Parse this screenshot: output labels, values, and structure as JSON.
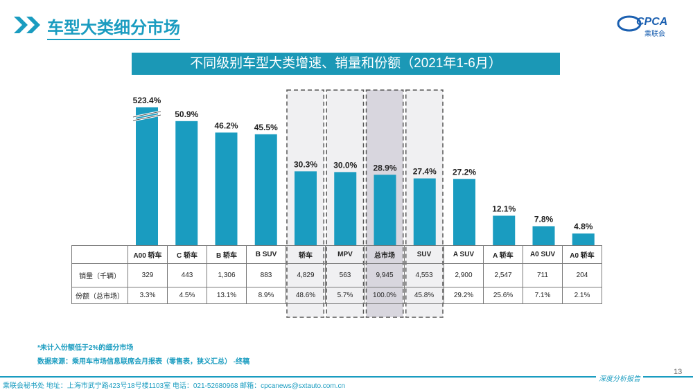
{
  "header": {
    "title": "车型大类细分市场",
    "logo_text": "CPCA 乘联会"
  },
  "banner": {
    "title": "不同级别车型大类增速、销量和份额（2021年1-6月）"
  },
  "chart_data": {
    "type": "bar",
    "title": "不同级别车型大类增速、销量和份额（2021年1-6月）",
    "categories": [
      "A00 轿车",
      "C 轿车",
      "B 轿车",
      "B SUV",
      "轿车",
      "MPV",
      "总市场",
      "SUV",
      "A SUV",
      "A 轿车",
      "A0 SUV",
      "A0 轿车"
    ],
    "values": [
      523.4,
      50.9,
      46.2,
      45.5,
      30.3,
      30.0,
      28.9,
      27.4,
      27.2,
      12.1,
      7.8,
      4.8
    ],
    "labels": [
      "523.4%",
      "50.9%",
      "46.2%",
      "45.5%",
      "30.3%",
      "30.0%",
      "28.9%",
      "27.4%",
      "27.2%",
      "12.1%",
      "7.8%",
      "4.8%"
    ],
    "broken_axis_category": "A00 轿车",
    "highlighted_categories": [
      "轿车",
      "MPV",
      "总市场",
      "SUV"
    ],
    "bar_color": "#1a9cc0",
    "grid": false
  },
  "table": {
    "rows": [
      {
        "label": "销量（千辆）",
        "values": [
          "329",
          "443",
          "1,306",
          "883",
          "4,829",
          "563",
          "9,945",
          "4,553",
          "2,900",
          "2,547",
          "711",
          "204"
        ]
      },
      {
        "label": "份额（总市场）",
        "values": [
          "3.3%",
          "4.5%",
          "13.1%",
          "8.9%",
          "48.6%",
          "5.7%",
          "100.0%",
          "45.8%",
          "29.2%",
          "25.6%",
          "7.1%",
          "2.1%"
        ]
      }
    ]
  },
  "notes": [
    "*未计入份额低于2%的细分市场",
    "数据来源：乘用车市场信息联席会月报表（零售表，狭义汇总）   -终稿"
  ],
  "footer": {
    "text": "乘联会秘书处    地址：上海市武宁路423号18号楼1103室    电话：021-52680968    邮箱：cpcanews@sxtauto.com.cn",
    "report": "深度分析报告",
    "page": "13"
  }
}
